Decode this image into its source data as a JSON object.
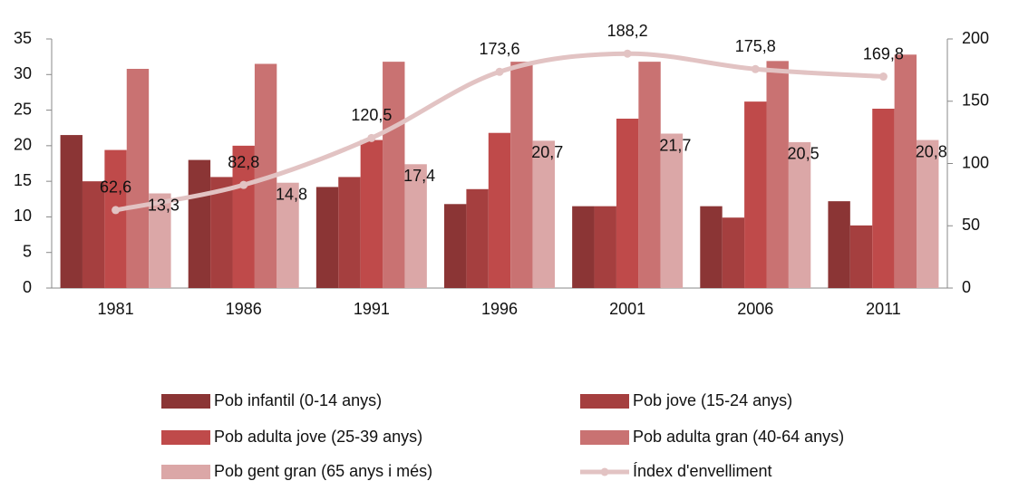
{
  "chart_data": {
    "type": "bar",
    "categories": [
      "1981",
      "1986",
      "1991",
      "1996",
      "2001",
      "2006",
      "2011"
    ],
    "series": [
      {
        "name": "Pob infantil (0-14 anys)",
        "color": "#8b3535",
        "values": [
          21.5,
          18,
          14.2,
          11.8,
          11.5,
          11.5,
          12.2
        ]
      },
      {
        "name": "Pob jove (15-24 anys)",
        "color": "#a53f3f",
        "values": [
          15,
          15.6,
          15.6,
          13.9,
          11.5,
          9.9,
          8.8
        ]
      },
      {
        "name": "Pob adulta jove (25-39 anys)",
        "color": "#bf4a4a",
        "values": [
          19.4,
          20,
          20.8,
          21.8,
          23.8,
          26.2,
          25.2
        ]
      },
      {
        "name": "Pob adulta gran (40-64 anys)",
        "color": "#c97272",
        "values": [
          30.8,
          31.5,
          31.8,
          31.8,
          31.8,
          31.9,
          32.8
        ]
      },
      {
        "name": "Pob gent gran (65 anys i més)",
        "color": "#dba7a7",
        "values": [
          13.3,
          14.8,
          17.4,
          20.7,
          21.7,
          20.5,
          20.8
        ],
        "value_labels": [
          "13,3",
          "14,8",
          "17,4",
          "20,7",
          "21,7",
          "20,5",
          "20,8"
        ]
      },
      {
        "name": "Índex d'envelliment",
        "color": "#e2c3c3",
        "type": "line",
        "axis": "y2",
        "values": [
          62.6,
          82.8,
          120.5,
          173.6,
          188.2,
          175.8,
          169.8
        ],
        "value_labels": [
          "62,6",
          "82,8",
          "120,5",
          "173,6",
          "188,2",
          "175,8",
          "169,8"
        ]
      }
    ],
    "ylim": [
      0,
      35
    ],
    "yticks": [
      0,
      5,
      10,
      15,
      20,
      25,
      30,
      35
    ],
    "y2lim": [
      0,
      200
    ],
    "y2ticks": [
      0,
      50,
      100,
      150,
      200
    ],
    "grid": false,
    "legend": "bottom"
  }
}
